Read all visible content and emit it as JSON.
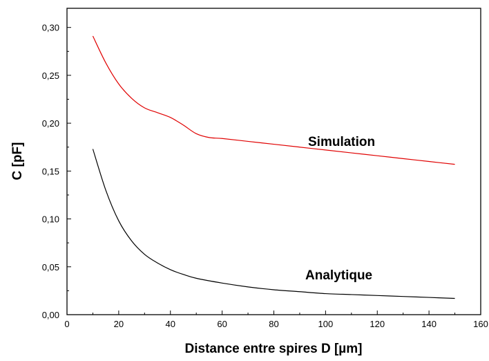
{
  "chart_data": {
    "type": "line",
    "xlabel": "Distance entre spires D [µm]",
    "ylabel": "C [pF]",
    "xlim": [
      0,
      160
    ],
    "ylim": [
      0,
      0.32
    ],
    "x_ticks": [
      0,
      20,
      40,
      60,
      80,
      100,
      120,
      140,
      160
    ],
    "x_tick_labels": [
      "0",
      "20",
      "40",
      "60",
      "80",
      "100",
      "120",
      "140",
      "160"
    ],
    "y_ticks": [
      0,
      0.05,
      0.1,
      0.15,
      0.2,
      0.25,
      0.3
    ],
    "y_tick_labels": [
      "0,00",
      "0,05",
      "0,10",
      "0,15",
      "0,20",
      "0,25",
      "0,30"
    ],
    "grid": false,
    "series": [
      {
        "name": "Simulation",
        "color": "#e00000",
        "x": [
          10,
          15,
          20,
          25,
          30,
          35,
          40,
          45,
          50,
          55,
          60,
          70,
          80,
          90,
          100,
          110,
          120,
          130,
          140,
          150
        ],
        "values": [
          0.291,
          0.263,
          0.241,
          0.226,
          0.216,
          0.211,
          0.206,
          0.198,
          0.189,
          0.185,
          0.184,
          0.181,
          0.178,
          0.175,
          0.172,
          0.169,
          0.166,
          0.163,
          0.16,
          0.157
        ]
      },
      {
        "name": "Analytique",
        "color": "#000000",
        "x": [
          10,
          15,
          20,
          25,
          30,
          35,
          40,
          45,
          50,
          60,
          70,
          80,
          90,
          100,
          110,
          120,
          130,
          140,
          150
        ],
        "values": [
          0.173,
          0.13,
          0.098,
          0.077,
          0.063,
          0.054,
          0.047,
          0.042,
          0.038,
          0.033,
          0.029,
          0.026,
          0.024,
          0.022,
          0.021,
          0.02,
          0.019,
          0.018,
          0.017
        ]
      }
    ],
    "annotations": [
      {
        "text": "Simulation",
        "series": 0
      },
      {
        "text": "Analytique",
        "series": 1
      }
    ]
  }
}
